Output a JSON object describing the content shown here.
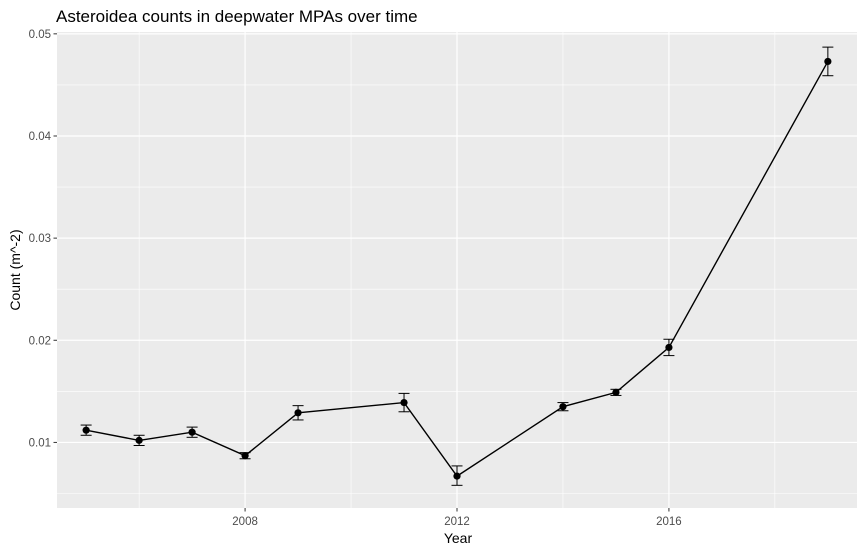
{
  "chart_data": {
    "type": "line",
    "title": "Asteroidea counts in deepwater MPAs over time",
    "xlabel": "Year",
    "ylabel": "Count (m^-2)",
    "xlim": [
      2004.45,
      2019.55
    ],
    "ylim": [
      0.00358,
      0.05018
    ],
    "x_ticks": [
      2008,
      2012,
      2016
    ],
    "x_tick_labels": [
      "2008",
      "2012",
      "2016"
    ],
    "y_ticks": [
      0.01,
      0.02,
      0.03,
      0.04,
      0.05
    ],
    "y_tick_labels": [
      "0.01",
      "0.02",
      "0.03",
      "0.04",
      "0.05"
    ],
    "grid": true,
    "legend": "none",
    "colors": {
      "panel": "#ebebeb",
      "grid": "#ffffff",
      "series": "#000000"
    },
    "series": [
      {
        "x": [
          2005,
          2006,
          2007,
          2008,
          2009,
          2011,
          2012,
          2014,
          2015,
          2016,
          2019
        ],
        "y": [
          0.0112,
          0.0102,
          0.011,
          0.0087,
          0.0129,
          0.0139,
          0.0067,
          0.0135,
          0.0149,
          0.0193,
          0.0473
        ],
        "ymin": [
          0.0107,
          0.0097,
          0.0105,
          0.0084,
          0.0122,
          0.013,
          0.0058,
          0.0131,
          0.0146,
          0.0185,
          0.0459
        ],
        "ymax": [
          0.0117,
          0.0107,
          0.0115,
          0.009,
          0.0136,
          0.0148,
          0.0077,
          0.0139,
          0.0152,
          0.0201,
          0.0487
        ]
      }
    ]
  }
}
